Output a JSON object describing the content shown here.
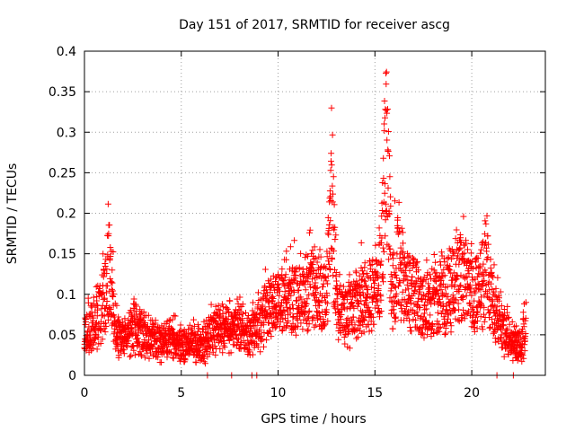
{
  "chart_data": {
    "type": "scatter",
    "title": "Day 151 of 2017, SRMTID for receiver ascg",
    "xlabel": "GPS time / hours",
    "ylabel": "SRMTID / TECUs",
    "xlim": [
      0,
      23.8
    ],
    "ylim": [
      0,
      0.4
    ],
    "grid": true,
    "marker": "+",
    "xticks": [
      0,
      5,
      10,
      15,
      20
    ],
    "xtick_labels": [
      "0",
      "5",
      "10",
      "15",
      "20"
    ],
    "yticks": [
      0,
      0.05,
      0.1,
      0.15,
      0.2,
      0.25,
      0.3,
      0.35,
      0.4
    ],
    "ytick_labels": [
      "0",
      "0.05",
      "0.1",
      "0.15",
      "0.2",
      "0.25",
      "0.3",
      "0.35",
      "0.4"
    ],
    "series": [
      {
        "name": "SRMTID",
        "color": "#ff0000",
        "envelope_x": [
          0,
          0.5,
          1.0,
          1.3,
          1.6,
          2.0,
          2.5,
          3.0,
          3.5,
          4.0,
          4.5,
          5.0,
          5.5,
          6.0,
          6.5,
          7.0,
          7.5,
          8.0,
          8.5,
          9.0,
          9.5,
          10.0,
          10.5,
          11.0,
          11.5,
          12.0,
          12.5,
          12.8,
          13.0,
          13.5,
          14.0,
          14.5,
          15.0,
          15.3,
          15.6,
          15.9,
          16.2,
          16.5,
          17.0,
          17.5,
          18.0,
          18.5,
          19.0,
          19.5,
          20.0,
          20.5,
          20.8,
          21.0,
          21.5,
          22.0,
          22.5,
          22.8
        ],
        "envelope_y": [
          0.05,
          0.065,
          0.09,
          0.13,
          0.06,
          0.045,
          0.055,
          0.05,
          0.045,
          0.04,
          0.045,
          0.035,
          0.04,
          0.035,
          0.05,
          0.06,
          0.06,
          0.055,
          0.05,
          0.06,
          0.08,
          0.09,
          0.09,
          0.095,
          0.1,
          0.11,
          0.1,
          0.22,
          0.09,
          0.07,
          0.085,
          0.095,
          0.1,
          0.13,
          0.3,
          0.1,
          0.15,
          0.11,
          0.1,
          0.085,
          0.09,
          0.1,
          0.11,
          0.12,
          0.1,
          0.11,
          0.14,
          0.09,
          0.06,
          0.045,
          0.035,
          0.055
        ],
        "zero_points_x": [
          6.35,
          7.6,
          8.65,
          8.9,
          21.3,
          22.15
        ]
      }
    ]
  }
}
